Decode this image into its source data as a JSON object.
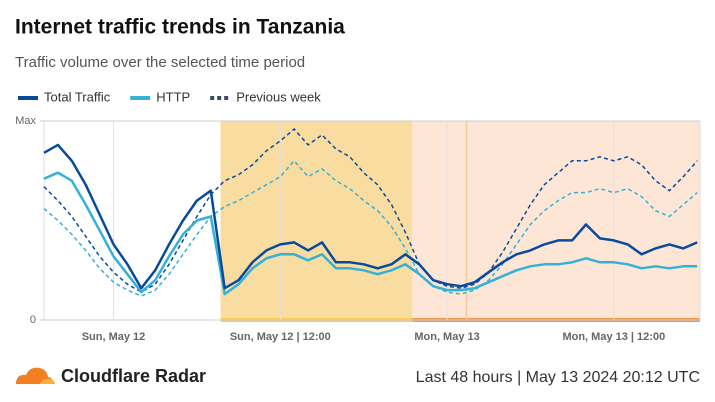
{
  "chart_data": {
    "type": "line",
    "title": "Internet traffic trends in Tanzania",
    "subtitle": "Traffic volume over the selected time period",
    "x": [
      -5,
      -4,
      -3,
      -2,
      -1,
      0,
      1,
      2,
      3,
      4,
      5,
      6,
      7,
      8,
      9,
      10,
      11,
      12,
      13,
      14,
      15,
      16,
      17,
      18,
      19,
      20,
      21,
      22,
      23,
      24,
      25,
      26,
      27,
      28,
      29,
      30,
      31,
      32,
      33,
      34,
      35,
      36,
      37,
      38,
      39,
      40,
      41,
      42
    ],
    "xlim": [
      -5,
      42.2
    ],
    "xticks": [
      {
        "value": 0,
        "label": "Sun, May 12"
      },
      {
        "value": 12,
        "label": "Sun, May 12 | 12:00"
      },
      {
        "value": 24,
        "label": "Mon, May 13"
      },
      {
        "value": 36,
        "label": "Mon, May 13 | 12:00"
      }
    ],
    "ylim": [
      0,
      1
    ],
    "yticks": [
      0,
      {
        "value": 1,
        "label": "Max"
      }
    ],
    "grid": true,
    "comparison": {
      "name": "Previous week",
      "style": "dashed",
      "color": "#3c4a6b"
    },
    "series": [
      {
        "name": "Total Traffic",
        "color": "#0a4a9c",
        "values": [
          0.84,
          0.88,
          0.8,
          0.68,
          0.53,
          0.38,
          0.28,
          0.16,
          0.25,
          0.38,
          0.5,
          0.6,
          0.65,
          0.16,
          0.2,
          0.29,
          0.35,
          0.38,
          0.39,
          0.35,
          0.39,
          0.29,
          0.29,
          0.28,
          0.26,
          0.28,
          0.33,
          0.28,
          0.2,
          0.18,
          0.17,
          0.19,
          0.24,
          0.29,
          0.33,
          0.35,
          0.38,
          0.4,
          0.4,
          0.48,
          0.41,
          0.4,
          0.38,
          0.33,
          0.36,
          0.38,
          0.36,
          0.39
        ],
        "previous_values": [
          0.67,
          0.6,
          0.52,
          0.42,
          0.32,
          0.24,
          0.18,
          0.14,
          0.18,
          0.28,
          0.4,
          0.52,
          0.63,
          0.7,
          0.73,
          0.78,
          0.85,
          0.9,
          0.96,
          0.88,
          0.93,
          0.86,
          0.82,
          0.74,
          0.68,
          0.58,
          0.44,
          0.28,
          0.2,
          0.17,
          0.16,
          0.18,
          0.24,
          0.34,
          0.46,
          0.58,
          0.68,
          0.74,
          0.8,
          0.8,
          0.82,
          0.8,
          0.82,
          0.78,
          0.7,
          0.65,
          0.72,
          0.8
        ]
      },
      {
        "name": "HTTP",
        "color": "#36b1d6",
        "values": [
          0.71,
          0.74,
          0.7,
          0.58,
          0.45,
          0.32,
          0.23,
          0.14,
          0.2,
          0.32,
          0.43,
          0.5,
          0.52,
          0.13,
          0.18,
          0.26,
          0.31,
          0.33,
          0.33,
          0.3,
          0.33,
          0.26,
          0.26,
          0.25,
          0.23,
          0.25,
          0.28,
          0.23,
          0.17,
          0.15,
          0.15,
          0.16,
          0.19,
          0.22,
          0.25,
          0.27,
          0.28,
          0.28,
          0.29,
          0.31,
          0.29,
          0.29,
          0.28,
          0.26,
          0.27,
          0.26,
          0.27,
          0.27
        ],
        "previous_values": [
          0.56,
          0.5,
          0.43,
          0.35,
          0.26,
          0.19,
          0.15,
          0.12,
          0.15,
          0.23,
          0.33,
          0.43,
          0.52,
          0.57,
          0.6,
          0.64,
          0.68,
          0.72,
          0.8,
          0.72,
          0.76,
          0.7,
          0.66,
          0.6,
          0.55,
          0.47,
          0.36,
          0.23,
          0.17,
          0.14,
          0.13,
          0.15,
          0.2,
          0.28,
          0.38,
          0.48,
          0.55,
          0.6,
          0.64,
          0.64,
          0.66,
          0.64,
          0.66,
          0.62,
          0.55,
          0.52,
          0.58,
          0.64
        ]
      }
    ],
    "highlights": [
      {
        "x": [
          7.7,
          21.5
        ],
        "color": "#f9dca0",
        "edge": "#fbcd56"
      },
      {
        "x": [
          21.5,
          42.2
        ],
        "color": "#fde6d6",
        "edge": "#ee9a55"
      }
    ],
    "markers_x": [
      25.4
    ],
    "brand": "Cloudflare Radar",
    "footer": "Last 48 hours | May 13 2024 20:12 UTC"
  }
}
